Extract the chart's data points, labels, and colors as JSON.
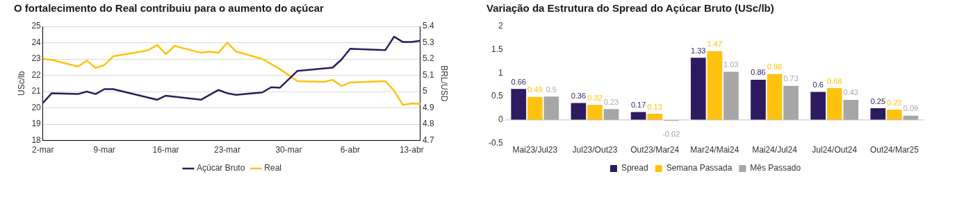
{
  "chart_data": [
    {
      "type": "line",
      "title": "O fortalecimento do Real contribuiu para o aumento do açúcar",
      "ylabel": "USc/lb",
      "y2label": "BRL/USD",
      "xlim": [
        "--03-02",
        "--04-14"
      ],
      "xticks": [
        {
          "value": "--03-02",
          "label": "2-mar"
        },
        {
          "value": "--03-09",
          "label": "9-mar"
        },
        {
          "value": "--03-16",
          "label": "16-mar"
        },
        {
          "value": "--03-23",
          "label": "23-mar"
        },
        {
          "value": "--03-30",
          "label": "30-mar"
        },
        {
          "value": "--04-06",
          "label": "6-abr"
        },
        {
          "value": "--04-13",
          "label": "13-abr"
        }
      ],
      "ylim": [
        18,
        25
      ],
      "yticks": [
        18,
        19,
        20,
        21,
        22,
        23,
        24,
        25
      ],
      "y2lim": [
        4.7,
        5.4
      ],
      "y2ticks": [
        4.7,
        4.8,
        4.9,
        5,
        5.1,
        5.2,
        5.3,
        5.4
      ],
      "grid": "y",
      "legend": "bottom",
      "marker": "none",
      "series": [
        {
          "name": "Açúcar Bruto",
          "color": "#2e1a5e",
          "x": [
            "--03-02",
            "--03-03",
            "--03-06",
            "--03-07",
            "--03-08",
            "--03-09",
            "--03-10",
            "--03-15",
            "--03-16",
            "--03-20",
            "--03-22",
            "--03-23",
            "--03-24",
            "--03-27",
            "--03-28",
            "--03-29",
            "--03-31",
            "--04-04",
            "--04-05",
            "--04-06",
            "--04-10",
            "--04-11",
            "--04-12",
            "--04-13",
            "--04-14"
          ],
          "values": [
            20.3,
            20.9,
            20.85,
            21.0,
            20.85,
            21.15,
            21.15,
            20.5,
            20.75,
            20.5,
            21.1,
            20.9,
            20.8,
            20.95,
            21.27,
            21.24,
            22.27,
            22.47,
            22.96,
            23.63,
            23.54,
            24.37,
            24.04,
            24.04,
            24.12
          ]
        },
        {
          "name": "Real",
          "color": "#ffc20e",
          "axis": "y2",
          "x": [
            "--03-02",
            "--03-03",
            "--03-06",
            "--03-07",
            "--03-08",
            "--03-09",
            "--03-10",
            "--03-14",
            "--03-15",
            "--03-16",
            "--03-17",
            "--03-20",
            "--03-21",
            "--03-22",
            "--03-23",
            "--03-24",
            "--03-27",
            "--03-29",
            "--03-31",
            "--04-03",
            "--04-04",
            "--04-05",
            "--04-06",
            "--04-10",
            "--04-11",
            "--04-12",
            "--04-13",
            "--04-14"
          ],
          "values": [
            5.2,
            5.195,
            5.153,
            5.19,
            5.145,
            5.163,
            5.216,
            5.253,
            5.287,
            5.23,
            5.28,
            5.238,
            5.245,
            5.238,
            5.3,
            5.246,
            5.2,
            5.138,
            5.064,
            5.06,
            5.072,
            5.034,
            5.056,
            5.064,
            5.006,
            4.918,
            4.927,
            4.925
          ]
        }
      ]
    },
    {
      "type": "bar",
      "title": "Variação da Estrutura do Spread do Açúcar Bruto (USc/lb)",
      "categories": [
        "Mai23/Jul23",
        "Jul23/Out23",
        "Out23/Mar24",
        "Mar24/Mai24",
        "Mai24/Jul24",
        "Jul24/Out24",
        "Out24/Mar25"
      ],
      "ylim": [
        -0.5,
        2
      ],
      "yticks": [
        -0.5,
        0,
        0.5,
        1,
        1.5,
        2
      ],
      "legend": "bottom",
      "data_labels": true,
      "ref_lines": [
        {
          "axis": "y",
          "value": 0,
          "color": "#bfbfbf"
        }
      ],
      "series": [
        {
          "name": "Spread",
          "color": "#2e1a5e",
          "values": [
            0.66,
            0.36,
            0.17,
            1.33,
            0.86,
            0.6,
            0.25
          ]
        },
        {
          "name": "Semana Passada",
          "color": "#ffc20e",
          "values": [
            0.49,
            0.32,
            0.13,
            1.47,
            0.98,
            0.68,
            0.22
          ]
        },
        {
          "name": "Mês Passado",
          "color": "#a6a6a6",
          "values": [
            0.5,
            0.23,
            -0.02,
            1.03,
            0.73,
            0.43,
            0.09
          ]
        }
      ]
    }
  ]
}
